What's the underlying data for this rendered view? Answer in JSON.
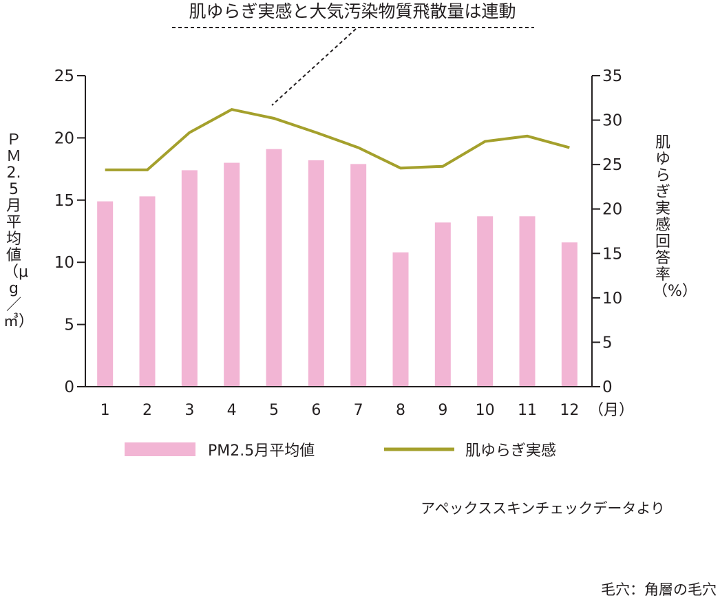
{
  "chart_data": {
    "type": "bar",
    "title": "肌ゆらぎ実感と大気汚染物質飛散量は連動",
    "categories": [
      "1",
      "2",
      "3",
      "4",
      "5",
      "6",
      "7",
      "8",
      "9",
      "10",
      "11",
      "12"
    ],
    "x_unit": "（月）",
    "series": [
      {
        "name": "PM2.5月平均値",
        "type": "bar",
        "axis": "left",
        "color": "#f2b5d4",
        "values": [
          14.9,
          15.3,
          17.4,
          18.0,
          19.1,
          18.2,
          17.9,
          10.8,
          13.2,
          13.7,
          13.7,
          11.6
        ]
      },
      {
        "name": "肌ゆらぎ実感",
        "type": "line",
        "axis": "right",
        "color": "#a4a02c",
        "values": [
          24.4,
          24.4,
          28.6,
          31.2,
          30.2,
          28.6,
          26.9,
          24.6,
          24.8,
          27.6,
          28.2,
          26.9
        ]
      }
    ],
    "ylabel_left": "ＰＭ2.5月平均値（μg／㎥）",
    "ylim_left": [
      0,
      25
    ],
    "yticks_left": [
      "0",
      "5",
      "10",
      "15",
      "20",
      "25"
    ],
    "ylabel_right": "肌ゆらぎ実感回答率（%）",
    "ylim_right": [
      0,
      35
    ],
    "yticks_right": [
      "0",
      "5",
      "10",
      "15",
      "20",
      "25",
      "30",
      "35"
    ],
    "grid": false,
    "legend_position": "bottom"
  },
  "source_note": "アペックススキンチェックデータより",
  "footer_note": "毛穴：角層の毛穴"
}
